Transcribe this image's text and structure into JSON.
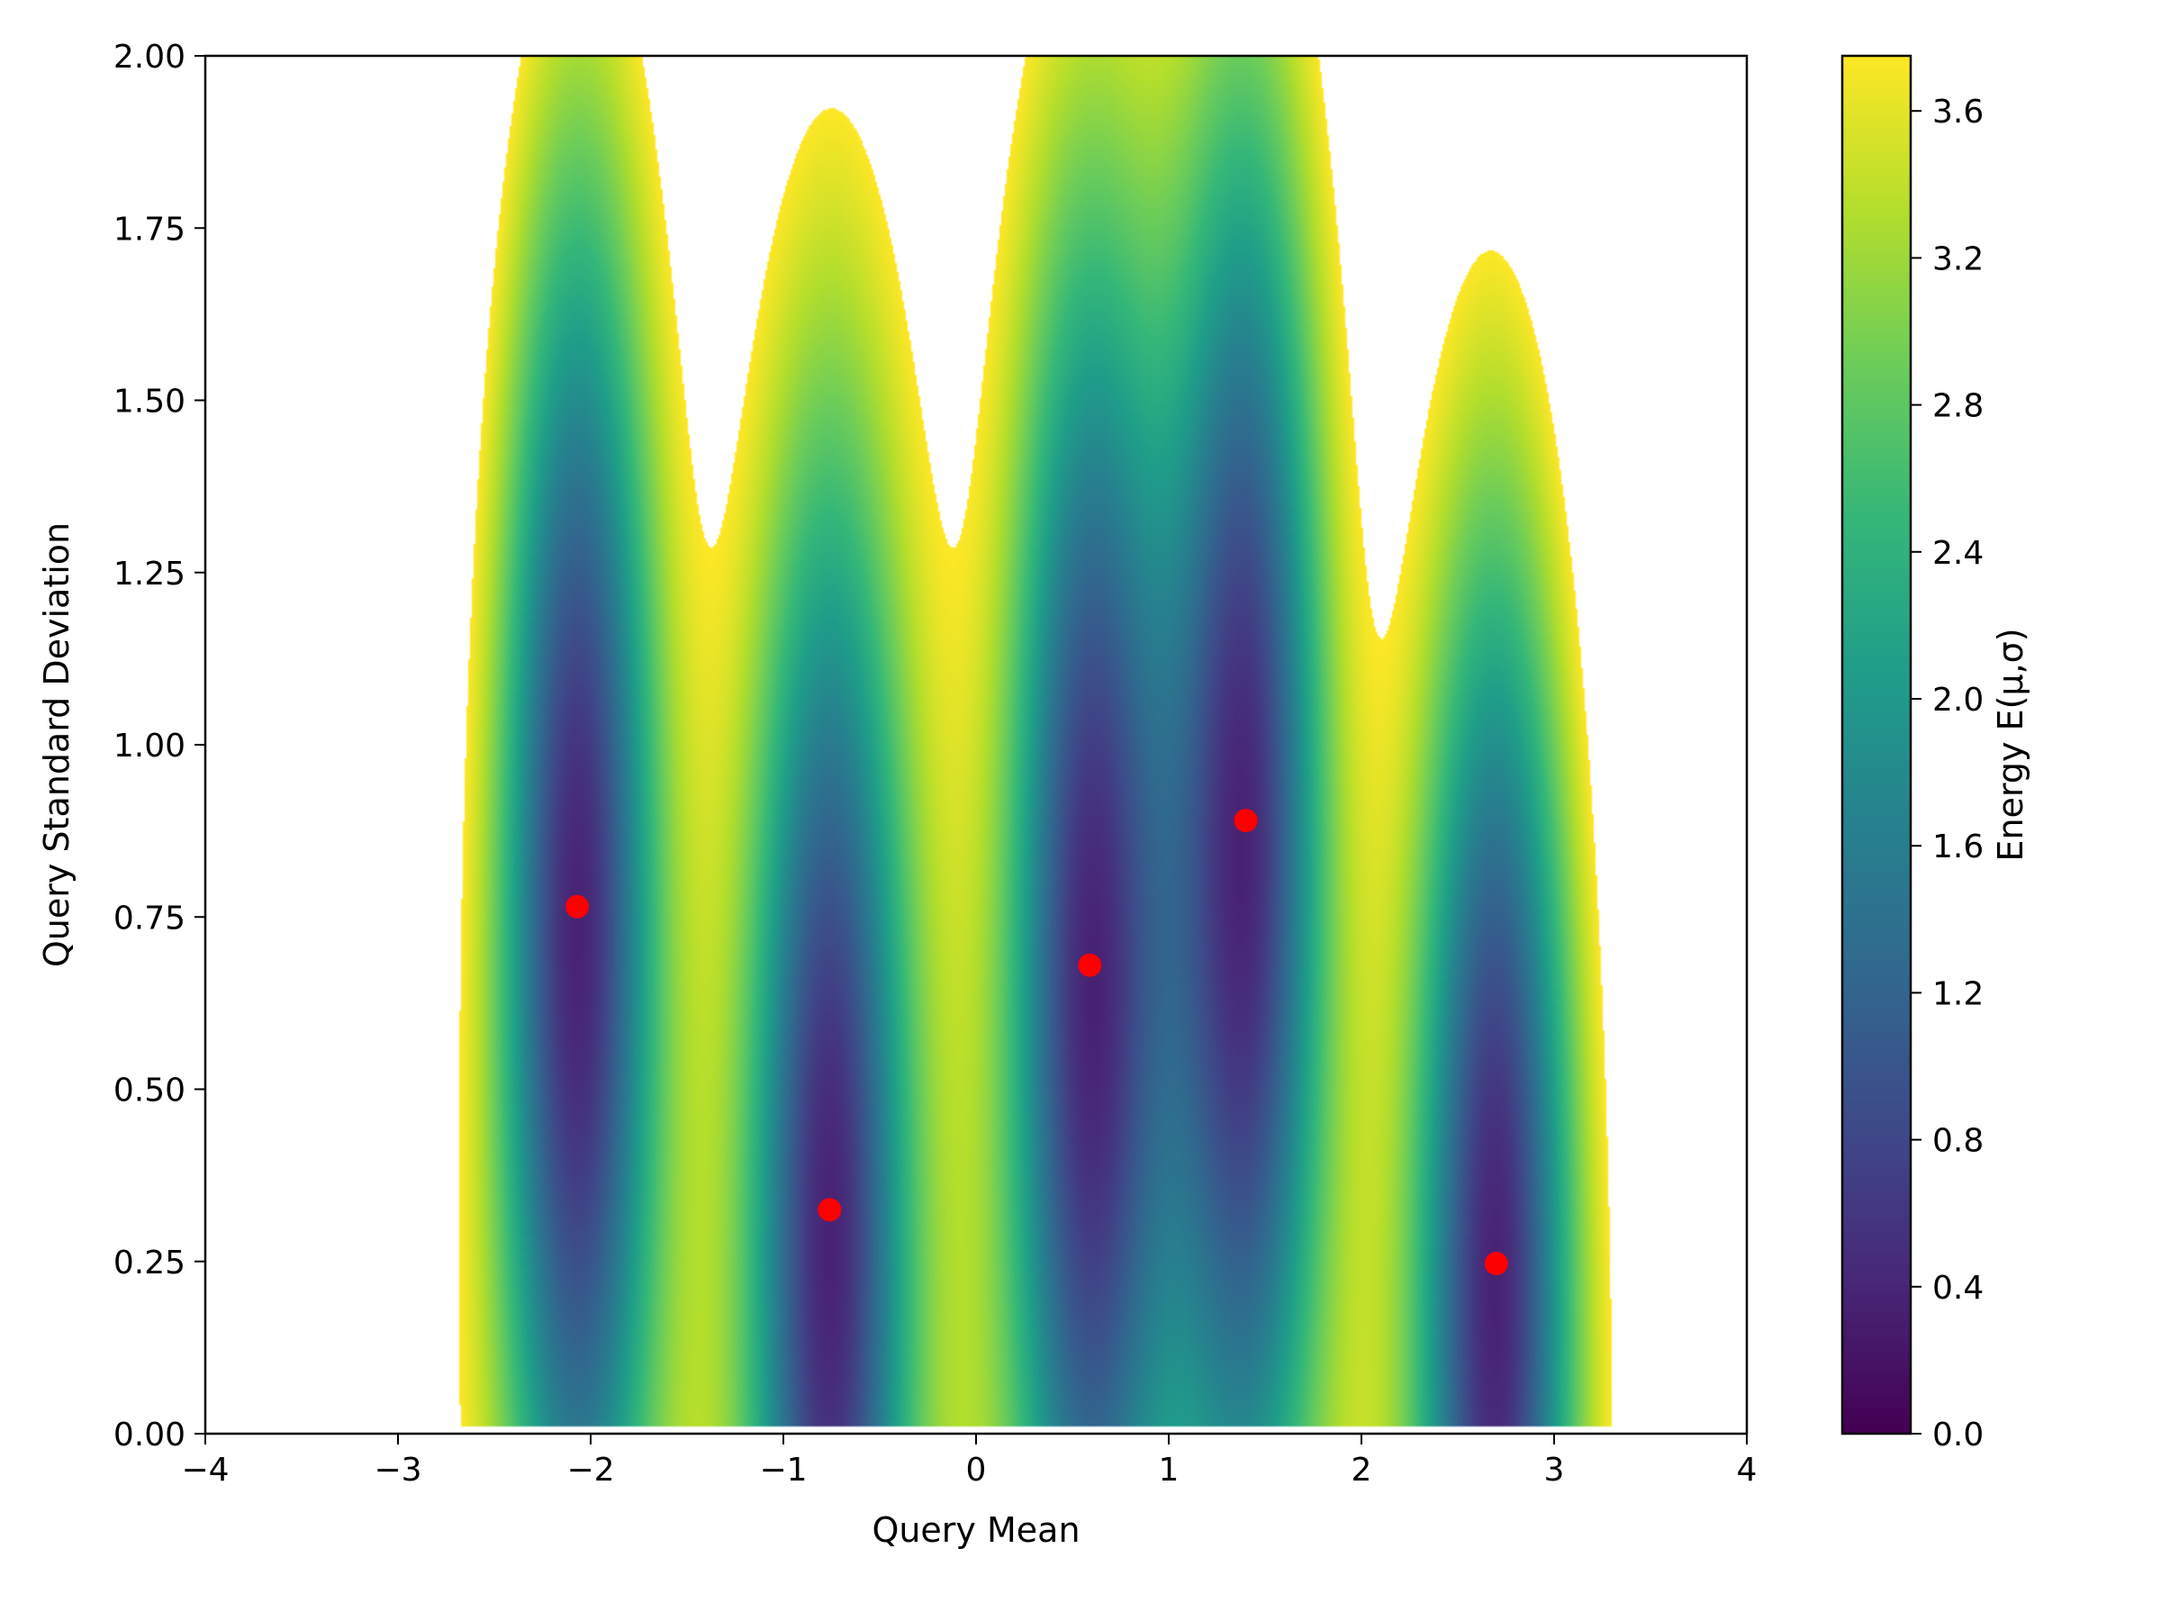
{
  "chart_data": {
    "type": "heatmap",
    "title": "",
    "xlabel": "Query Mean",
    "ylabel": "Query Standard Deviation",
    "colorbar_label": "Energy E(μ,σ)",
    "colormap": "viridis",
    "xlim": [
      -4,
      4
    ],
    "ylim": [
      0,
      2
    ],
    "clim": [
      0,
      3.75
    ],
    "x_ticks": [
      -4,
      -3,
      -2,
      -1,
      0,
      1,
      2,
      3,
      4
    ],
    "x_tick_labels": [
      "−4",
      "−3",
      "−2",
      "−1",
      "0",
      "1",
      "2",
      "3",
      "4"
    ],
    "y_ticks": [
      0,
      0.25,
      0.5,
      0.75,
      1.0,
      1.25,
      1.5,
      1.75,
      2.0
    ],
    "y_tick_labels": [
      "0.00",
      "0.25",
      "0.50",
      "0.75",
      "1.00",
      "1.25",
      "1.50",
      "1.75",
      "2.00"
    ],
    "colorbar_ticks": [
      0,
      0.4,
      0.8,
      1.2,
      1.6,
      2.0,
      2.4,
      2.8,
      3.2,
      3.6
    ],
    "colorbar_tick_labels": [
      "0.0",
      "0.4",
      "0.8",
      "1.2",
      "1.6",
      "2.0",
      "2.4",
      "2.8",
      "3.2",
      "3.6"
    ],
    "grid": false,
    "minima": {
      "color": "#ff0000",
      "x": [
        -2.07,
        -0.76,
        0.59,
        1.4,
        2.7
      ],
      "y": [
        0.765,
        0.325,
        0.68,
        0.89,
        0.247
      ]
    },
    "energy_max_shown": 3.75
  }
}
